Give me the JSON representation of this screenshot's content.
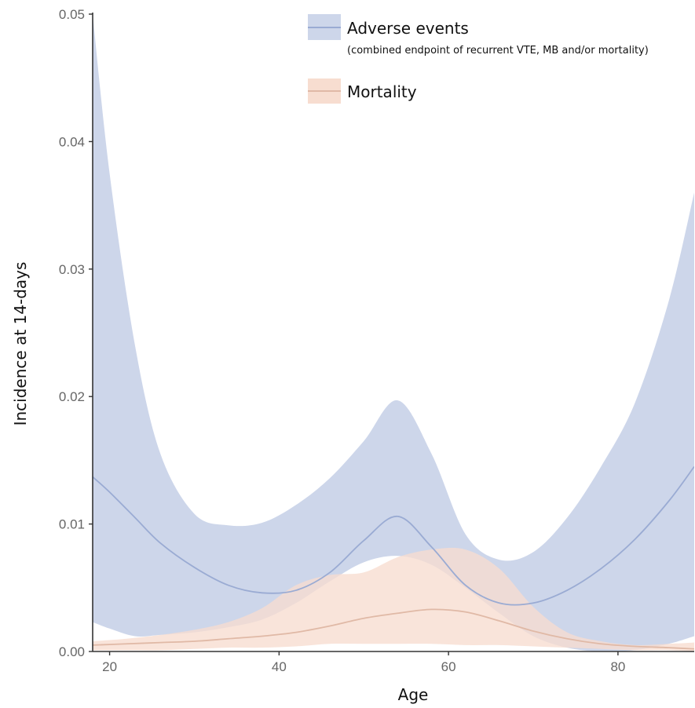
{
  "chart_data": {
    "type": "area",
    "xlabel": "Age",
    "ylabel": "Incidence at 14-days",
    "xlim": [
      18,
      89
    ],
    "ylim": [
      0,
      0.05
    ],
    "x_ticks": [
      20,
      40,
      60,
      80
    ],
    "y_ticks": [
      0.0,
      0.01,
      0.02,
      0.03,
      0.04,
      0.05
    ],
    "y_tick_labels": [
      "0.00",
      "0.01",
      "0.02",
      "0.03",
      "0.04",
      "0.05"
    ],
    "grid": false,
    "legend_position": "top-center",
    "series": [
      {
        "name": "Adverse events",
        "legend_subtitle": "(combined endpoint of recurrent VTE, MB and/or mortality)",
        "fill_color": "#cdd6ea",
        "line_color": "#9aabd3",
        "x": [
          18,
          20,
          23,
          26,
          30,
          34,
          38,
          42,
          46,
          50,
          54,
          58,
          62,
          66,
          70,
          74,
          78,
          82,
          86,
          89
        ],
        "estimate": [
          0.0137,
          0.0125,
          0.0105,
          0.0085,
          0.0066,
          0.0052,
          0.0046,
          0.0048,
          0.0062,
          0.0087,
          0.0106,
          0.0082,
          0.0052,
          0.0038,
          0.0038,
          0.0048,
          0.0065,
          0.0088,
          0.0118,
          0.0145
        ],
        "upper": [
          0.05,
          0.0375,
          0.024,
          0.0155,
          0.0108,
          0.0099,
          0.0101,
          0.0115,
          0.0136,
          0.0165,
          0.0197,
          0.0155,
          0.0092,
          0.0072,
          0.0078,
          0.0105,
          0.0145,
          0.0195,
          0.0275,
          0.036
        ],
        "lower": [
          0.0023,
          0.0018,
          0.0012,
          0.0013,
          0.0015,
          0.0019,
          0.0025,
          0.0038,
          0.0055,
          0.007,
          0.0075,
          0.0068,
          0.005,
          0.003,
          0.0012,
          0.0003,
          0.0,
          0.0001,
          0.0006,
          0.0012
        ]
      },
      {
        "name": "Mortality",
        "fill_color": "#f7ddd0",
        "line_color": "#e0b9a6",
        "x": [
          18,
          22,
          26,
          30,
          34,
          38,
          42,
          46,
          50,
          54,
          58,
          62,
          66,
          70,
          74,
          78,
          82,
          86,
          89
        ],
        "estimate": [
          0.0005,
          0.0006,
          0.0007,
          0.0008,
          0.001,
          0.0012,
          0.0015,
          0.002,
          0.0026,
          0.003,
          0.0033,
          0.0031,
          0.0024,
          0.0016,
          0.001,
          0.0006,
          0.0004,
          0.0003,
          0.0002
        ],
        "upper": [
          0.0008,
          0.001,
          0.0013,
          0.0017,
          0.0023,
          0.0034,
          0.0052,
          0.006,
          0.0062,
          0.0074,
          0.008,
          0.008,
          0.0065,
          0.0035,
          0.0015,
          0.0008,
          0.0005,
          0.0006,
          0.0007
        ],
        "lower": [
          0.0001,
          0.0001,
          0.0001,
          0.0002,
          0.0003,
          0.0003,
          0.0004,
          0.0006,
          0.0006,
          0.0006,
          0.0006,
          0.0005,
          0.0005,
          0.0004,
          0.0003,
          0.0002,
          0.0001,
          0.0001,
          0.0
        ]
      }
    ]
  }
}
